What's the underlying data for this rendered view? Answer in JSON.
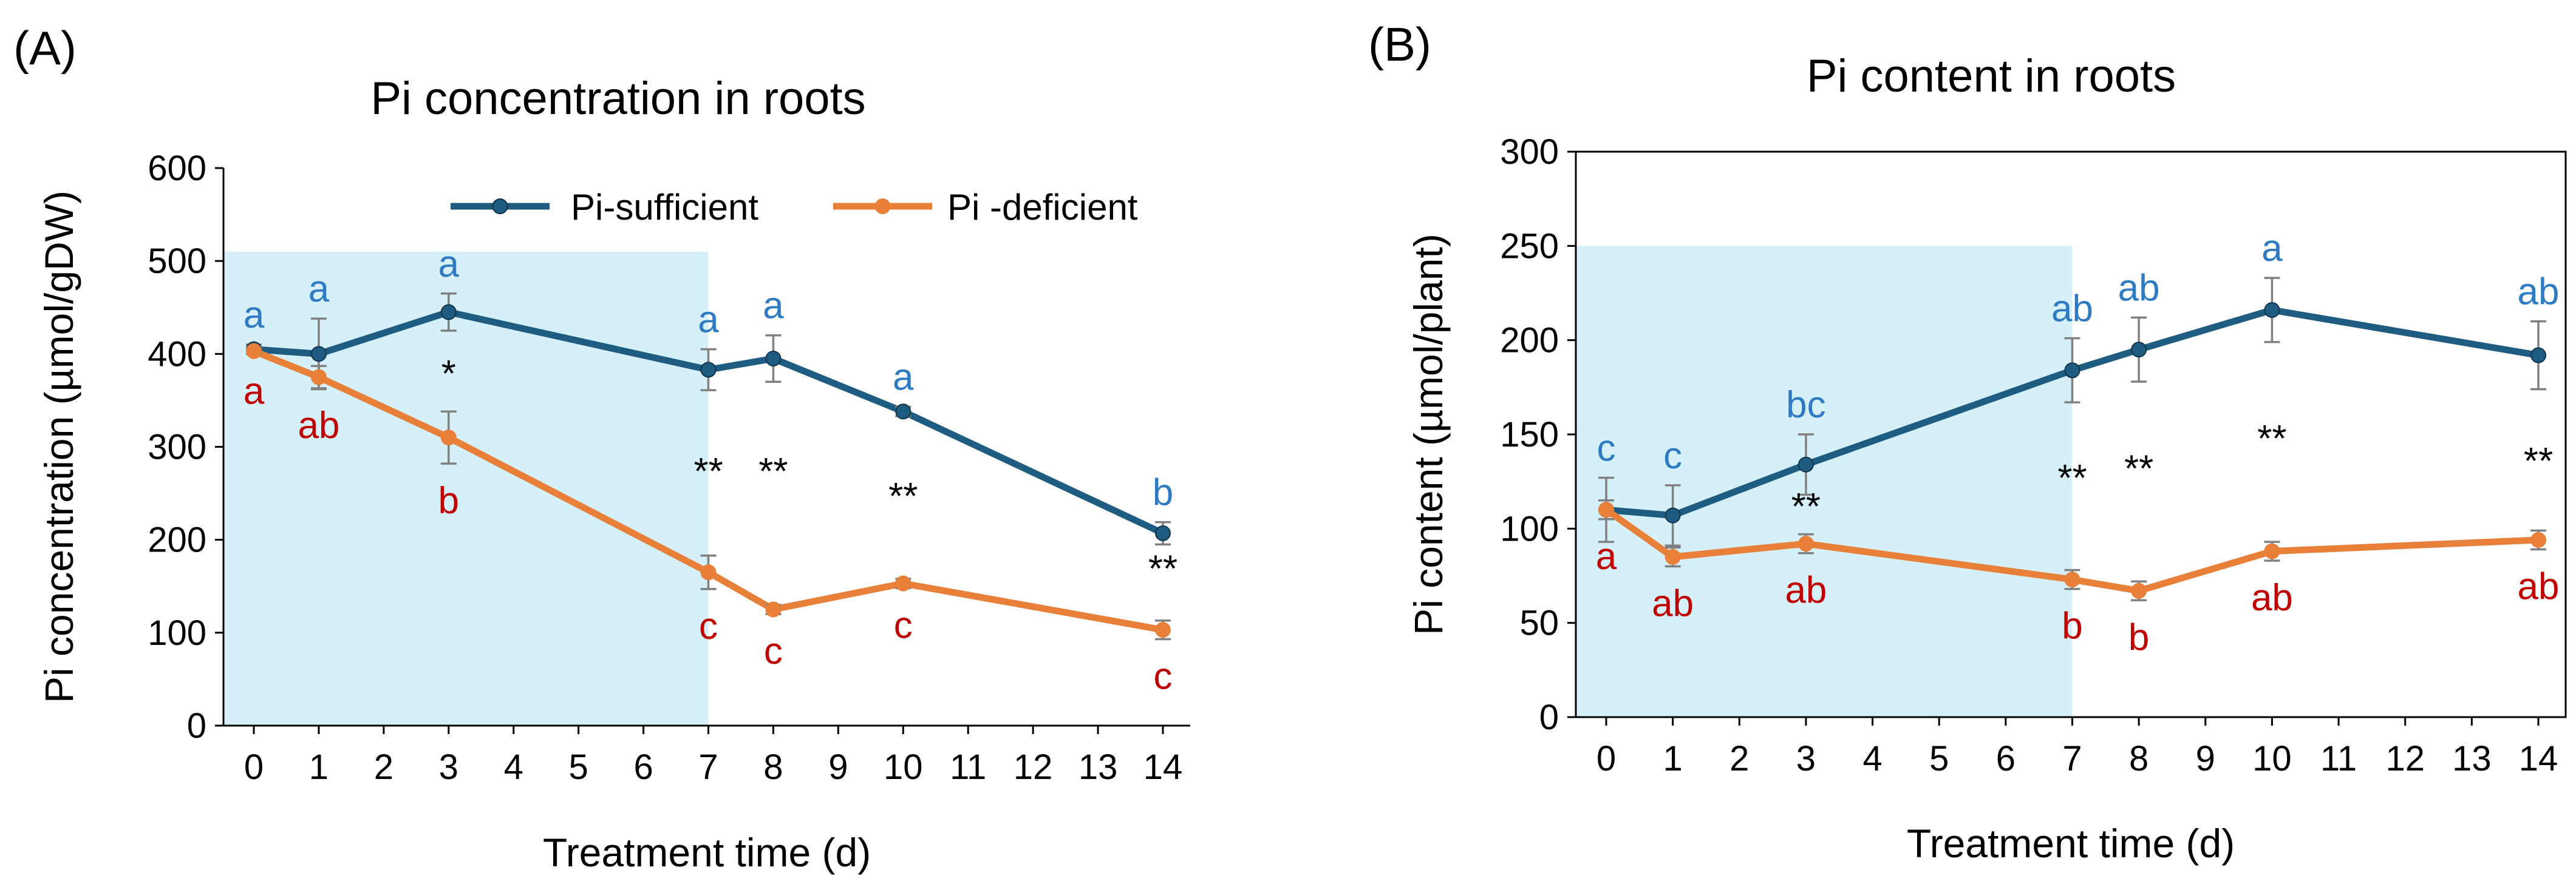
{
  "panels": [
    {
      "panel_label": "(A)",
      "title": "Pi concentration in roots",
      "xlabel": "Treatment time (d)",
      "ylabel": "Pi concentration (µmol/gDW)",
      "legend": [
        "Pi-sufficient",
        "Pi -deficient"
      ],
      "colors": {
        "sufficient": "#1F5C82",
        "deficient": "#E8803A",
        "shade": "#D6F0FA",
        "letter_sufficient": "#2E7BC4",
        "letter_deficient": "#C00000",
        "error": "#808080"
      },
      "chart_data": {
        "type": "line",
        "x_ticks": [
          "0",
          "1",
          "2",
          "3",
          "4",
          "5",
          "6",
          "7",
          "8",
          "9",
          "10",
          "11",
          "12",
          "13",
          "14"
        ],
        "xlim": [
          0,
          14
        ],
        "ylim": [
          0,
          600
        ],
        "y_ticks": [
          "0",
          "100",
          "200",
          "300",
          "400",
          "500",
          "600"
        ],
        "shaded_region": {
          "x": [
            0,
            7
          ],
          "y": [
            0,
            510
          ]
        },
        "series": [
          {
            "name": "Pi-sufficient",
            "x": [
              0,
              1,
              3,
              7,
              8,
              10,
              14
            ],
            "values": [
              405,
              400,
              445,
              383,
              395,
              338,
              207
            ],
            "errors": [
              5,
              38,
              20,
              22,
              25,
              5,
              12
            ],
            "letters": [
              "a",
              "a",
              "a",
              "a",
              "a",
              "a",
              "b"
            ]
          },
          {
            "name": "Pi -deficient",
            "x": [
              0,
              1,
              3,
              7,
              8,
              10,
              14
            ],
            "values": [
              403,
              375,
              310,
              165,
              125,
              153,
              103
            ],
            "errors": [
              3,
              12,
              28,
              18,
              5,
              5,
              10
            ],
            "letters": [
              "a",
              "ab",
              "b",
              "c",
              "c",
              "c",
              "c"
            ]
          }
        ],
        "significance": [
          {
            "x": 3,
            "y": 365,
            "label": "*"
          },
          {
            "x": 7,
            "y": 260,
            "label": "**"
          },
          {
            "x": 8,
            "y": 260,
            "label": "**"
          },
          {
            "x": 10,
            "y": 233,
            "label": "**"
          },
          {
            "x": 14,
            "y": 155,
            "label": "**"
          }
        ]
      }
    },
    {
      "panel_label": "(B)",
      "title": "Pi content in roots",
      "xlabel": "Treatment time (d)",
      "ylabel": "Pi content (µmol/plant)",
      "legend": [],
      "colors": {
        "sufficient": "#1F5C82",
        "deficient": "#E8803A",
        "shade": "#D6F0FA",
        "letter_sufficient": "#2E7BC4",
        "letter_deficient": "#C00000",
        "error": "#808080"
      },
      "chart_data": {
        "type": "line",
        "x_ticks": [
          "0",
          "1",
          "2",
          "3",
          "4",
          "5",
          "6",
          "7",
          "8",
          "9",
          "10",
          "11",
          "12",
          "13",
          "14"
        ],
        "xlim": [
          0,
          14
        ],
        "ylim": [
          0,
          300
        ],
        "y_ticks": [
          "0",
          "50",
          "100",
          "150",
          "200",
          "250",
          "300"
        ],
        "shaded_region": {
          "x": [
            0,
            7
          ],
          "y": [
            0,
            250
          ]
        },
        "series": [
          {
            "name": "Pi-sufficient",
            "x": [
              0,
              1,
              3,
              7,
              8,
              10,
              14
            ],
            "values": [
              110,
              107,
              134,
              184,
              195,
              216,
              192
            ],
            "errors": [
              17,
              16,
              16,
              17,
              17,
              17,
              18
            ],
            "letters": [
              "c",
              "c",
              "bc",
              "ab",
              "ab",
              "a",
              "ab"
            ]
          },
          {
            "name": "Pi -deficient",
            "x": [
              0,
              1,
              3,
              7,
              8,
              10,
              14
            ],
            "values": [
              110,
              85,
              92,
              73,
              67,
              88,
              94
            ],
            "errors": [
              5,
              5,
              5,
              5,
              5,
              5,
              5
            ],
            "letters": [
              "a",
              "ab",
              "ab",
              "b",
              "b",
              "ab",
              "ab"
            ]
          }
        ],
        "significance": [
          {
            "x": 3,
            "y": 105,
            "label": "**"
          },
          {
            "x": 7,
            "y": 120,
            "label": "**"
          },
          {
            "x": 8,
            "y": 125,
            "label": "**"
          },
          {
            "x": 10,
            "y": 141,
            "label": "**"
          },
          {
            "x": 14,
            "y": 129,
            "label": "**"
          }
        ]
      }
    }
  ]
}
